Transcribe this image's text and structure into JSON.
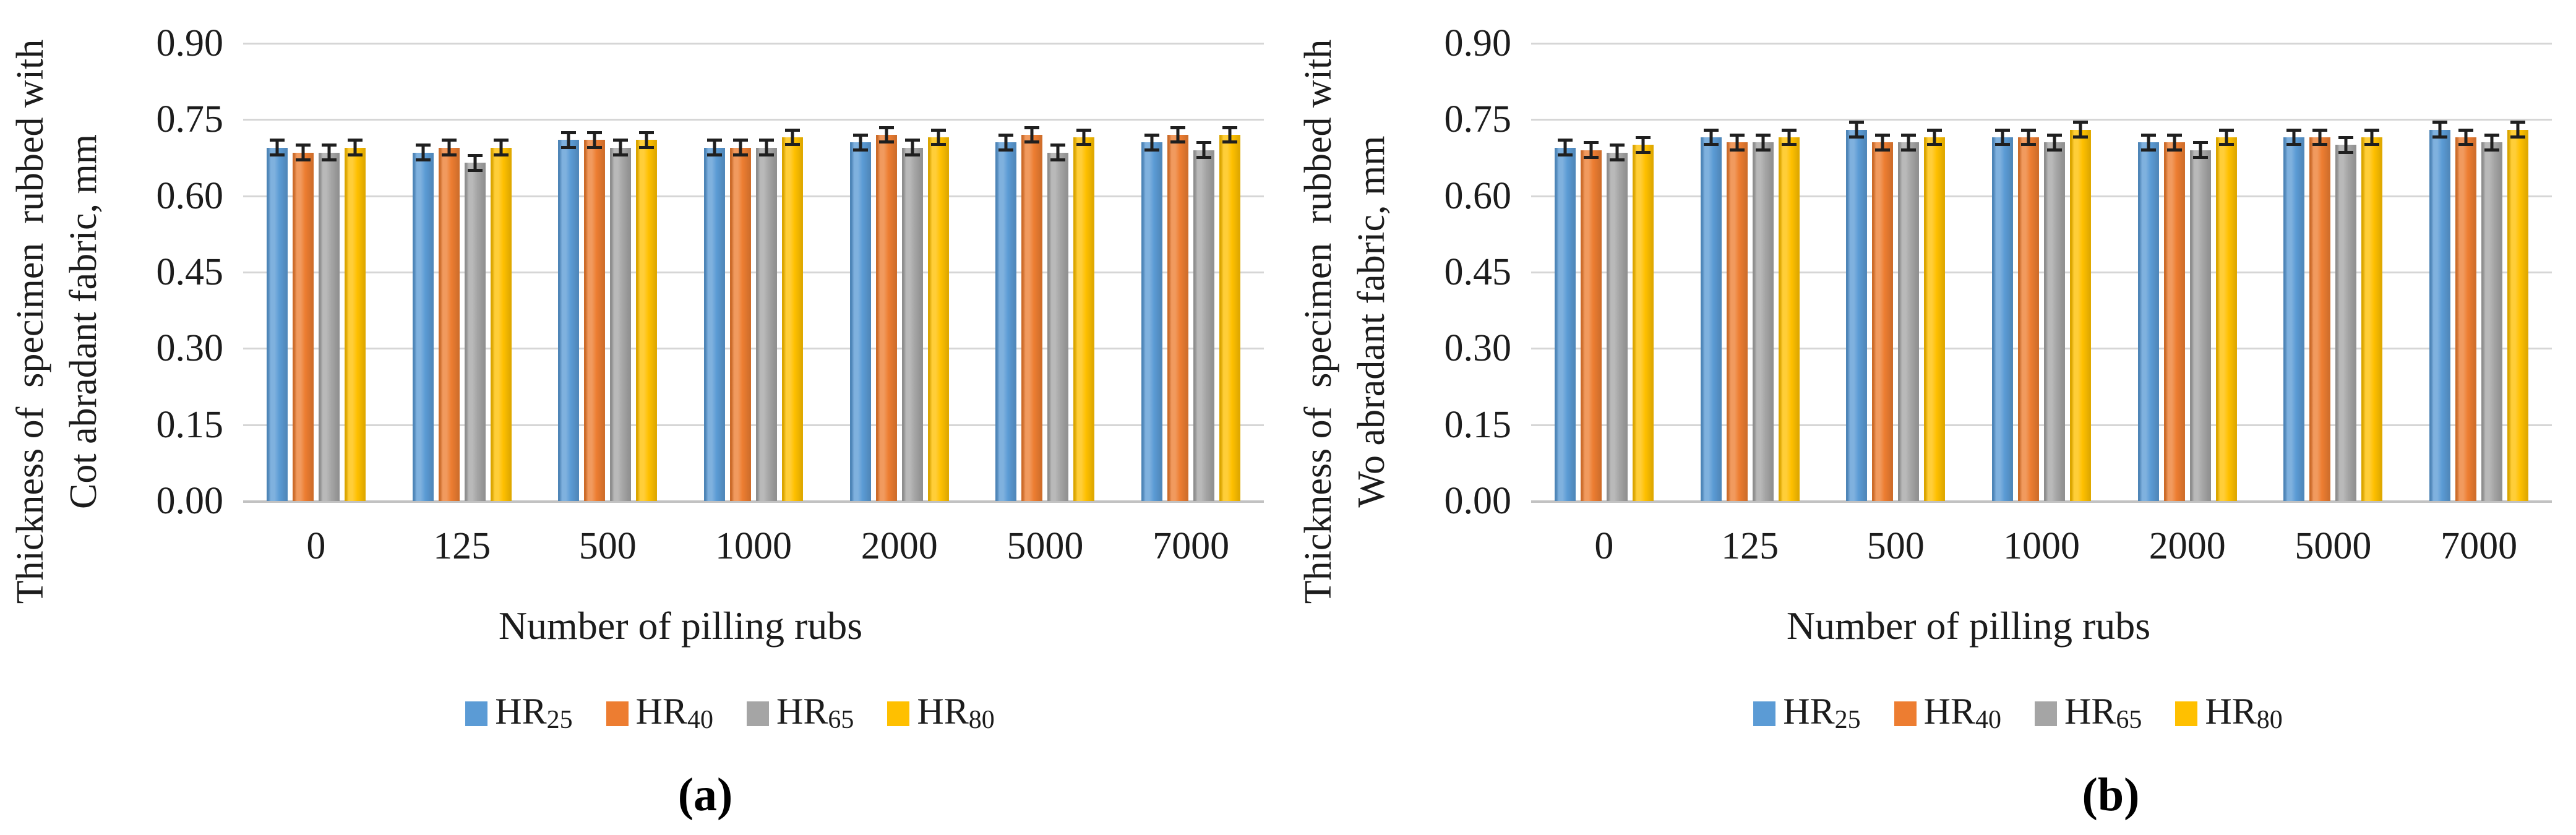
{
  "figure": {
    "background": "#ffffff"
  },
  "chart_data": [
    {
      "type": "bar",
      "caption": "(a)",
      "ylabel_line1": "Thickness of  specimen  rubbed with",
      "ylabel_line2": "Cot abradant fabric, mm",
      "xlabel": "Number of pilling rubs",
      "categories": [
        "0",
        "125",
        "500",
        "1000",
        "2000",
        "5000",
        "7000"
      ],
      "yticks": [
        "0.00",
        "0.15",
        "0.30",
        "0.45",
        "0.60",
        "0.75",
        "0.90"
      ],
      "ylim": [
        0,
        0.9
      ],
      "grid": true,
      "legend_position": "bottom",
      "error_bar_mm": 0.015,
      "series": [
        {
          "name": "HR",
          "subscript": "25",
          "color": "#5B9BD5",
          "values": [
            0.695,
            0.685,
            0.71,
            0.695,
            0.705,
            0.705,
            0.705
          ]
        },
        {
          "name": "HR",
          "subscript": "40",
          "color": "#ED7D31",
          "values": [
            0.685,
            0.695,
            0.71,
            0.695,
            0.72,
            0.72,
            0.72
          ]
        },
        {
          "name": "HR",
          "subscript": "65",
          "color": "#A5A5A5",
          "values": [
            0.685,
            0.665,
            0.695,
            0.695,
            0.695,
            0.685,
            0.69
          ]
        },
        {
          "name": "HR",
          "subscript": "80",
          "color": "#FFC000",
          "values": [
            0.695,
            0.695,
            0.71,
            0.715,
            0.715,
            0.715,
            0.72
          ]
        }
      ]
    },
    {
      "type": "bar",
      "caption": "(b)",
      "ylabel_line1": "Thickness of  specimen  rubbed with",
      "ylabel_line2": "Wo abradant fabric, mm",
      "xlabel": "Number of pilling rubs",
      "categories": [
        "0",
        "125",
        "500",
        "1000",
        "2000",
        "5000",
        "7000"
      ],
      "yticks": [
        "0.00",
        "0.15",
        "0.30",
        "0.45",
        "0.60",
        "0.75",
        "0.90"
      ],
      "ylim": [
        0,
        0.9
      ],
      "grid": true,
      "legend_position": "bottom",
      "error_bar_mm": 0.015,
      "series": [
        {
          "name": "HR",
          "subscript": "25",
          "color": "#5B9BD5",
          "values": [
            0.695,
            0.715,
            0.73,
            0.715,
            0.705,
            0.715,
            0.73
          ]
        },
        {
          "name": "HR",
          "subscript": "40",
          "color": "#ED7D31",
          "values": [
            0.69,
            0.705,
            0.705,
            0.715,
            0.705,
            0.715,
            0.715
          ]
        },
        {
          "name": "HR",
          "subscript": "65",
          "color": "#A5A5A5",
          "values": [
            0.685,
            0.705,
            0.705,
            0.705,
            0.69,
            0.7,
            0.705
          ]
        },
        {
          "name": "HR",
          "subscript": "80",
          "color": "#FFC000",
          "values": [
            0.7,
            0.715,
            0.715,
            0.73,
            0.715,
            0.715,
            0.73
          ]
        }
      ]
    }
  ]
}
